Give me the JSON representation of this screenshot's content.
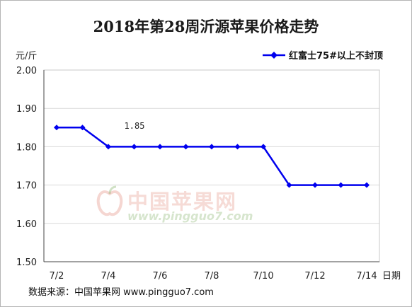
{
  "title": "2018年第28周沂源苹果价格走势",
  "unit_label": "元/斤",
  "source": "数据来源：中国苹果网 www.pingguo7.com",
  "watermark": {
    "cn": "中国苹果网",
    "url": "www.pingguo7.com"
  },
  "chart_data": {
    "type": "line",
    "title": "2018年第28周沂源苹果价格走势",
    "xlabel": "日期",
    "ylabel": "元/斤",
    "ylim": [
      1.5,
      2.0
    ],
    "yticks": [
      "2.00",
      "1.90",
      "1.80",
      "1.70",
      "1.60",
      "1.50"
    ],
    "ytick_values": [
      2.0,
      1.9,
      1.8,
      1.7,
      1.6,
      1.5
    ],
    "x_tick_labels": [
      "7/2",
      "7/4",
      "7/6",
      "7/8",
      "7/10",
      "7/12",
      "7/14"
    ],
    "x_tick_positions": [
      0,
      2,
      4,
      6,
      8,
      10,
      12
    ],
    "grid": true,
    "legend_position": "top-right",
    "color": "#0000ee",
    "series": [
      {
        "name": "红富士75#以上不封顶",
        "values": [
          1.85,
          1.85,
          1.8,
          1.8,
          1.8,
          1.8,
          1.8,
          1.8,
          1.8,
          1.7,
          1.7,
          1.7,
          1.7
        ]
      }
    ],
    "annotations": [
      {
        "text": "1.85"
      }
    ]
  }
}
